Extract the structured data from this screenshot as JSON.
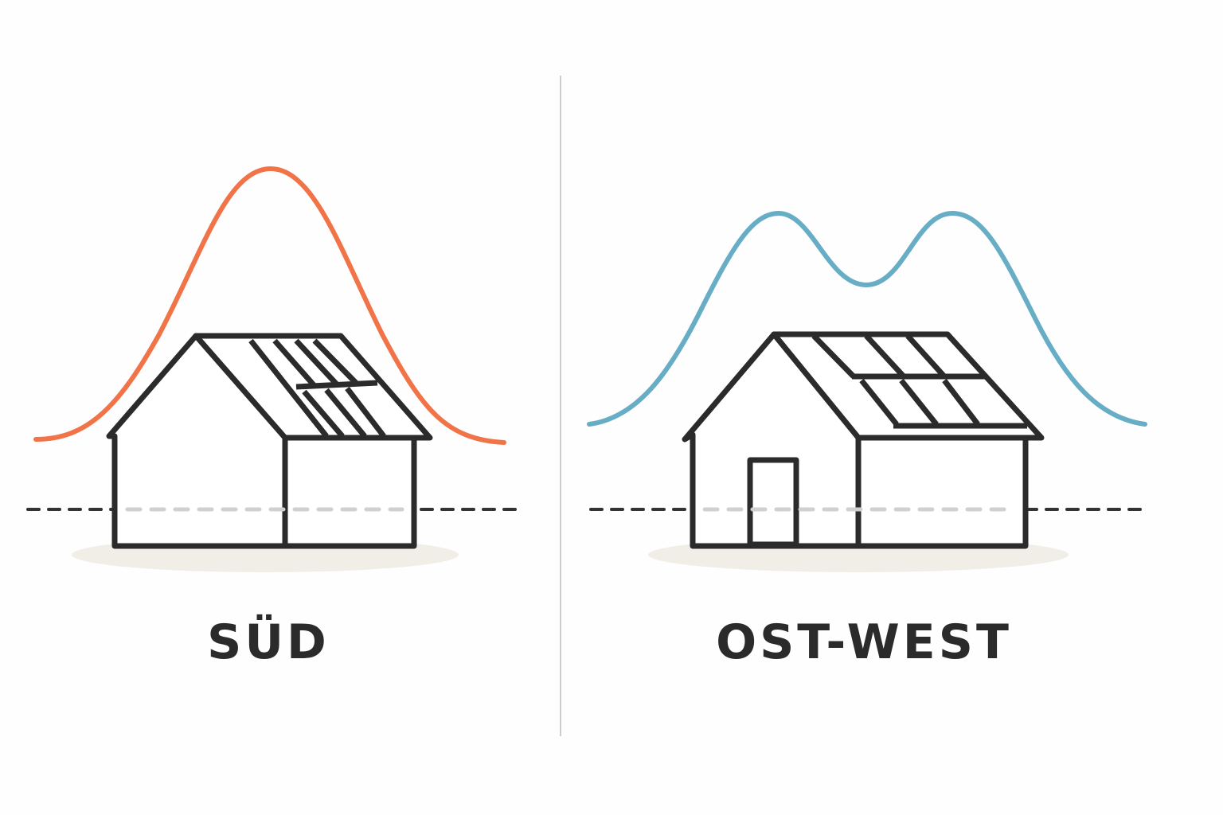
{
  "left": {
    "label": "SÜD",
    "curve_color": "#f07448",
    "curve_shape": "single-peak"
  },
  "right": {
    "label": "OST-WEST",
    "curve_color": "#67adc6",
    "curve_shape": "double-peak"
  },
  "colors": {
    "outline": "#2b2b2b",
    "shadow": "#f1eee7",
    "divider": "#cccccc",
    "baseline_dash": "#333333"
  }
}
